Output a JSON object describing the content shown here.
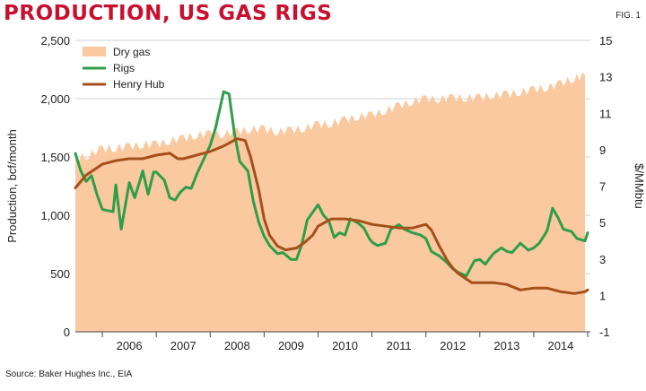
{
  "header": {
    "title": "PRODUCTION, US GAS RIGS",
    "fig_label": "FIG. 1"
  },
  "footer": {
    "source": "Source: Baker Hughes Inc., EIA"
  },
  "colors": {
    "title": "#c8102e",
    "dry_gas": "#fbc9a0",
    "rigs": "#2e9e48",
    "henry_hub": "#a5501b",
    "grid": "#cfcfcf"
  },
  "chart_data": {
    "type": "line",
    "title": "PRODUCTION, US GAS RIGS",
    "xlabel": "",
    "ylabel_left": "Production, bcf/month",
    "ylabel_right": "$/MMbtu",
    "xlim": [
      2005.5,
      2015.05
    ],
    "ylim_left": [
      0,
      2500
    ],
    "ylim_right": [
      -1,
      15
    ],
    "x_ticks": [
      "2006",
      "2007",
      "2008",
      "2009",
      "2010",
      "2011",
      "2012",
      "2013",
      "2014"
    ],
    "y_ticks_left": [
      "0",
      "500",
      "1,000",
      "1,500",
      "2,000",
      "2,500"
    ],
    "y_ticks_right": [
      "-1",
      "1",
      "3",
      "5",
      "7",
      "9",
      "11",
      "13",
      "15"
    ],
    "grid": true,
    "legend": "top-left",
    "series": [
      {
        "name": "Dry gas",
        "type": "area",
        "axis": "left",
        "points": [
          [
            2005.5,
            1490
          ],
          [
            2005.75,
            1520
          ],
          [
            2006.0,
            1570
          ],
          [
            2006.25,
            1580
          ],
          [
            2006.5,
            1590
          ],
          [
            2006.75,
            1610
          ],
          [
            2007.0,
            1610
          ],
          [
            2007.25,
            1640
          ],
          [
            2007.5,
            1660
          ],
          [
            2007.75,
            1690
          ],
          [
            2008.0,
            1700
          ],
          [
            2008.25,
            1700
          ],
          [
            2008.5,
            1720
          ],
          [
            2008.75,
            1740
          ],
          [
            2009.0,
            1740
          ],
          [
            2009.25,
            1720
          ],
          [
            2009.5,
            1730
          ],
          [
            2009.75,
            1750
          ],
          [
            2010.0,
            1780
          ],
          [
            2010.25,
            1790
          ],
          [
            2010.5,
            1820
          ],
          [
            2010.75,
            1850
          ],
          [
            2011.0,
            1860
          ],
          [
            2011.25,
            1900
          ],
          [
            2011.5,
            1940
          ],
          [
            2011.75,
            1980
          ],
          [
            2012.0,
            2000
          ],
          [
            2012.25,
            2000
          ],
          [
            2012.5,
            2010
          ],
          [
            2012.75,
            2010
          ],
          [
            2013.0,
            2010
          ],
          [
            2013.25,
            2030
          ],
          [
            2013.5,
            2040
          ],
          [
            2013.75,
            2060
          ],
          [
            2014.0,
            2080
          ],
          [
            2014.25,
            2100
          ],
          [
            2014.5,
            2130
          ],
          [
            2014.75,
            2180
          ],
          [
            2014.95,
            2200
          ]
        ]
      },
      {
        "name": "Rigs",
        "type": "line",
        "axis": "left",
        "points": [
          [
            2005.5,
            1530
          ],
          [
            2005.6,
            1380
          ],
          [
            2005.7,
            1290
          ],
          [
            2005.8,
            1340
          ],
          [
            2005.9,
            1180
          ],
          [
            2006.0,
            1050
          ],
          [
            2006.1,
            1040
          ],
          [
            2006.2,
            1030
          ],
          [
            2006.25,
            1260
          ],
          [
            2006.35,
            880
          ],
          [
            2006.5,
            1280
          ],
          [
            2006.6,
            1150
          ],
          [
            2006.7,
            1300
          ],
          [
            2006.75,
            1380
          ],
          [
            2006.85,
            1180
          ],
          [
            2006.95,
            1370
          ],
          [
            2007.0,
            1370
          ],
          [
            2007.15,
            1300
          ],
          [
            2007.25,
            1150
          ],
          [
            2007.35,
            1130
          ],
          [
            2007.45,
            1200
          ],
          [
            2007.55,
            1240
          ],
          [
            2007.65,
            1230
          ],
          [
            2007.75,
            1350
          ],
          [
            2007.85,
            1450
          ],
          [
            2008.0,
            1600
          ],
          [
            2008.1,
            1750
          ],
          [
            2008.25,
            2060
          ],
          [
            2008.35,
            2040
          ],
          [
            2008.45,
            1700
          ],
          [
            2008.55,
            1460
          ],
          [
            2008.7,
            1380
          ],
          [
            2008.8,
            1120
          ],
          [
            2008.9,
            940
          ],
          [
            2009.0,
            820
          ],
          [
            2009.1,
            740
          ],
          [
            2009.25,
            670
          ],
          [
            2009.35,
            680
          ],
          [
            2009.5,
            620
          ],
          [
            2009.6,
            620
          ],
          [
            2009.7,
            750
          ],
          [
            2009.8,
            960
          ],
          [
            2010.0,
            1090
          ],
          [
            2010.1,
            1000
          ],
          [
            2010.2,
            950
          ],
          [
            2010.3,
            810
          ],
          [
            2010.4,
            850
          ],
          [
            2010.5,
            830
          ],
          [
            2010.6,
            970
          ],
          [
            2010.75,
            930
          ],
          [
            2010.85,
            890
          ],
          [
            2010.95,
            800
          ],
          [
            2011.0,
            770
          ],
          [
            2011.1,
            740
          ],
          [
            2011.25,
            760
          ],
          [
            2011.35,
            880
          ],
          [
            2011.5,
            920
          ],
          [
            2011.6,
            880
          ],
          [
            2011.75,
            850
          ],
          [
            2011.9,
            830
          ],
          [
            2012.0,
            800
          ],
          [
            2012.1,
            690
          ],
          [
            2012.25,
            650
          ],
          [
            2012.4,
            590
          ],
          [
            2012.5,
            540
          ],
          [
            2012.6,
            510
          ],
          [
            2012.75,
            480
          ],
          [
            2012.9,
            610
          ],
          [
            2013.0,
            620
          ],
          [
            2013.1,
            580
          ],
          [
            2013.25,
            670
          ],
          [
            2013.4,
            720
          ],
          [
            2013.5,
            690
          ],
          [
            2013.6,
            680
          ],
          [
            2013.75,
            760
          ],
          [
            2013.9,
            700
          ],
          [
            2014.0,
            720
          ],
          [
            2014.1,
            760
          ],
          [
            2014.2,
            830
          ],
          [
            2014.25,
            870
          ],
          [
            2014.35,
            1060
          ],
          [
            2014.45,
            980
          ],
          [
            2014.55,
            880
          ],
          [
            2014.7,
            860
          ],
          [
            2014.8,
            800
          ],
          [
            2014.95,
            780
          ],
          [
            2015.0,
            850
          ]
        ]
      },
      {
        "name": "Henry Hub",
        "type": "line",
        "axis": "right",
        "points": [
          [
            2005.5,
            6.9
          ],
          [
            2005.7,
            7.6
          ],
          [
            2006.0,
            8.2
          ],
          [
            2006.25,
            8.4
          ],
          [
            2006.5,
            8.5
          ],
          [
            2006.75,
            8.5
          ],
          [
            2007.0,
            8.7
          ],
          [
            2007.25,
            8.8
          ],
          [
            2007.4,
            8.5
          ],
          [
            2007.5,
            8.5
          ],
          [
            2007.75,
            8.7
          ],
          [
            2008.0,
            8.9
          ],
          [
            2008.25,
            9.2
          ],
          [
            2008.5,
            9.6
          ],
          [
            2008.65,
            9.5
          ],
          [
            2008.75,
            8.6
          ],
          [
            2008.9,
            6.8
          ],
          [
            2009.0,
            5.2
          ],
          [
            2009.1,
            4.3
          ],
          [
            2009.25,
            3.7
          ],
          [
            2009.4,
            3.5
          ],
          [
            2009.6,
            3.6
          ],
          [
            2009.75,
            3.9
          ],
          [
            2009.9,
            4.3
          ],
          [
            2010.0,
            4.8
          ],
          [
            2010.25,
            5.2
          ],
          [
            2010.5,
            5.2
          ],
          [
            2010.75,
            5.1
          ],
          [
            2011.0,
            4.9
          ],
          [
            2011.25,
            4.8
          ],
          [
            2011.5,
            4.7
          ],
          [
            2011.75,
            4.7
          ],
          [
            2012.0,
            4.9
          ],
          [
            2012.1,
            4.6
          ],
          [
            2012.25,
            3.7
          ],
          [
            2012.4,
            2.9
          ],
          [
            2012.5,
            2.5
          ],
          [
            2012.6,
            2.2
          ],
          [
            2012.75,
            1.9
          ],
          [
            2012.85,
            1.7
          ],
          [
            2013.0,
            1.7
          ],
          [
            2013.25,
            1.7
          ],
          [
            2013.5,
            1.6
          ],
          [
            2013.75,
            1.3
          ],
          [
            2014.0,
            1.4
          ],
          [
            2014.25,
            1.4
          ],
          [
            2014.5,
            1.2
          ],
          [
            2014.75,
            1.1
          ],
          [
            2014.95,
            1.2
          ],
          [
            2015.0,
            1.3
          ]
        ]
      }
    ]
  }
}
